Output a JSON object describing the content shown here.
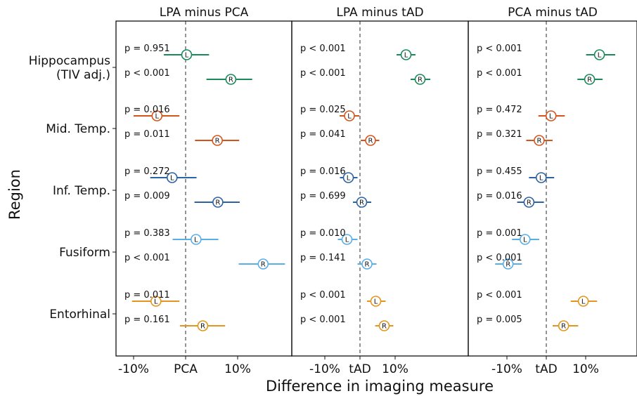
{
  "chart_data": {
    "type": "forest",
    "xlabel": "Difference in imaging measure",
    "ylabel": "Region",
    "regions": [
      {
        "name": "Hippocampus",
        "subname": "(TIV adj.)",
        "color": "#1a8a5a"
      },
      {
        "name": "Mid. Temp.",
        "subname": "",
        "color": "#d4541c"
      },
      {
        "name": "Inf. Temp.",
        "subname": "",
        "color": "#2a63a6"
      },
      {
        "name": "Fusiform",
        "subname": "",
        "color": "#5aaee6"
      },
      {
        "name": "Entorhinal",
        "subname": "",
        "color": "#e3951d"
      }
    ],
    "panels": [
      {
        "title": "LPA minus PCA",
        "ref_label": "PCA",
        "xticks": [
          {
            "value": -10,
            "label": "-10%"
          },
          {
            "value": 0,
            "label": "PCA"
          },
          {
            "value": 10,
            "label": "10%"
          }
        ],
        "xlim": [
          -13.5,
          19.5
        ],
        "rows": [
          {
            "region": 0,
            "side": "L",
            "est": 0.2,
            "lo": -4.2,
            "hi": 4.5,
            "p": "p = 0.951"
          },
          {
            "region": 0,
            "side": "R",
            "est": 8.7,
            "lo": 4.0,
            "hi": 12.8,
            "p": "p < 0.001"
          },
          {
            "region": 1,
            "side": "L",
            "est": -5.5,
            "lo": -10.0,
            "hi": -1.2,
            "p": "p = 0.016"
          },
          {
            "region": 1,
            "side": "R",
            "est": 6.1,
            "lo": 1.8,
            "hi": 10.3,
            "p": "p = 0.011"
          },
          {
            "region": 2,
            "side": "L",
            "est": -2.6,
            "lo": -6.8,
            "hi": 2.1,
            "p": "p = 0.272"
          },
          {
            "region": 2,
            "side": "R",
            "est": 6.2,
            "lo": 1.7,
            "hi": 10.4,
            "p": "p = 0.009"
          },
          {
            "region": 3,
            "side": "L",
            "est": 2.0,
            "lo": -2.5,
            "hi": 6.3,
            "p": "p = 0.383"
          },
          {
            "region": 3,
            "side": "R",
            "est": 14.9,
            "lo": 10.2,
            "hi": 19.1,
            "p": "p < 0.001"
          },
          {
            "region": 4,
            "side": "L",
            "est": -5.7,
            "lo": -10.3,
            "hi": -1.2,
            "p": "p = 0.011"
          },
          {
            "region": 4,
            "side": "R",
            "est": 3.3,
            "lo": -1.1,
            "hi": 7.6,
            "p": "p = 0.161"
          }
        ]
      },
      {
        "title": "LPA minus tAD",
        "ref_label": "tAD",
        "xticks": [
          {
            "value": -10,
            "label": "-10%"
          },
          {
            "value": 0,
            "label": "tAD"
          },
          {
            "value": 10,
            "label": "10%"
          }
        ],
        "xlim": [
          -13.5,
          21
        ],
        "rows": [
          {
            "region": 0,
            "side": "L",
            "est": 13.1,
            "lo": 10.4,
            "hi": 15.8,
            "p": "p < 0.001"
          },
          {
            "region": 0,
            "side": "R",
            "est": 17.1,
            "lo": 14.4,
            "hi": 20.0,
            "p": "p < 0.001"
          },
          {
            "region": 1,
            "side": "L",
            "est": -3.0,
            "lo": -5.8,
            "hi": -0.2,
            "p": "p = 0.025"
          },
          {
            "region": 1,
            "side": "R",
            "est": 3.0,
            "lo": 0.2,
            "hi": 5.5,
            "p": "p = 0.041"
          },
          {
            "region": 2,
            "side": "L",
            "est": -3.3,
            "lo": -5.7,
            "hi": -0.7,
            "p": "p = 0.016"
          },
          {
            "region": 2,
            "side": "R",
            "est": 0.5,
            "lo": -2.0,
            "hi": 3.2,
            "p": "p = 0.699"
          },
          {
            "region": 3,
            "side": "L",
            "est": -3.7,
            "lo": -6.3,
            "hi": -0.7,
            "p": "p = 0.010"
          },
          {
            "region": 3,
            "side": "R",
            "est": 2.0,
            "lo": -0.7,
            "hi": 4.7,
            "p": "p = 0.141"
          },
          {
            "region": 4,
            "side": "L",
            "est": 4.5,
            "lo": 2.0,
            "hi": 7.3,
            "p": "p < 0.001"
          },
          {
            "region": 4,
            "side": "R",
            "est": 6.9,
            "lo": 4.3,
            "hi": 9.5,
            "p": "p < 0.001"
          }
        ]
      },
      {
        "title": "PCA minus tAD",
        "ref_label": "tAD",
        "xticks": [
          {
            "value": -10,
            "label": "-10%"
          },
          {
            "value": 0,
            "label": "tAD"
          },
          {
            "value": 10,
            "label": "10%"
          }
        ],
        "xlim": [
          -13.5,
          18
        ],
        "rows": [
          {
            "region": 0,
            "side": "L",
            "est": 13.5,
            "lo": 10.1,
            "hi": 17.5,
            "p": "p < 0.001"
          },
          {
            "region": 0,
            "side": "R",
            "est": 11.0,
            "lo": 7.9,
            "hi": 14.3,
            "p": "p < 0.001"
          },
          {
            "region": 1,
            "side": "L",
            "est": 1.2,
            "lo": -2.0,
            "hi": 4.7,
            "p": "p = 0.472"
          },
          {
            "region": 1,
            "side": "R",
            "est": -1.8,
            "lo": -5.1,
            "hi": 1.6,
            "p": "p = 0.321"
          },
          {
            "region": 2,
            "side": "L",
            "est": -1.3,
            "lo": -4.4,
            "hi": 2.0,
            "p": "p = 0.455"
          },
          {
            "region": 2,
            "side": "R",
            "est": -4.4,
            "lo": -7.4,
            "hi": -0.6,
            "p": "p = 0.016"
          },
          {
            "region": 3,
            "side": "L",
            "est": -5.4,
            "lo": -8.7,
            "hi": -1.8,
            "p": "p = 0.001"
          },
          {
            "region": 3,
            "side": "R",
            "est": -9.7,
            "lo": -13.0,
            "hi": -6.2,
            "p": "p < 0.001"
          },
          {
            "region": 4,
            "side": "L",
            "est": 9.4,
            "lo": 6.2,
            "hi": 12.9,
            "p": "p < 0.001"
          },
          {
            "region": 4,
            "side": "R",
            "est": 4.4,
            "lo": 1.6,
            "hi": 8.1,
            "p": "p = 0.005"
          }
        ]
      }
    ]
  }
}
